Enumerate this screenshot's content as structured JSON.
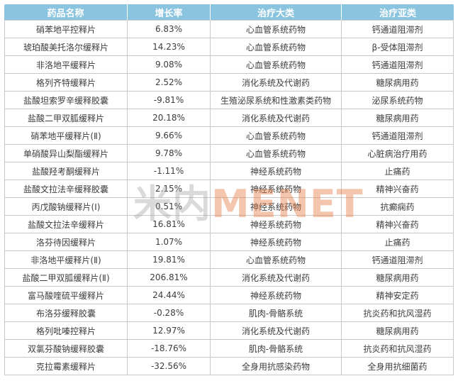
{
  "chart_data": {
    "type": "table",
    "title": "",
    "columns": [
      "药品名称",
      "增长率",
      "治疗大类",
      "治疗亚类"
    ],
    "rows": [
      {
        "name": "硝苯地平控释片",
        "growth": "6.83%",
        "category": "心血管系统药物",
        "subcategory": "钙通道阻滞剂"
      },
      {
        "name": "琥珀酸美托洛尔缓释片",
        "growth": "14.23%",
        "category": "心血管系统药物",
        "subcategory": "β-受体阻滞剂"
      },
      {
        "name": "非洛地平缓释片",
        "growth": "9.08%",
        "category": "心血管系统药物",
        "subcategory": "钙通道阻滞剂"
      },
      {
        "name": "格列齐特缓释片",
        "growth": "2.52%",
        "category": "消化系统及代谢药",
        "subcategory": "糖尿病用药"
      },
      {
        "name": "盐酸坦索罗辛缓释胶囊",
        "growth": "-9.81%",
        "category": "生殖泌尿系统和性激素类药物",
        "subcategory": "泌尿系统药物"
      },
      {
        "name": "盐酸二甲双胍缓释片",
        "growth": "20.18%",
        "category": "消化系统及代谢药",
        "subcategory": "糖尿病用药"
      },
      {
        "name": "硝苯地平缓释片(Ⅱ)",
        "growth": "9.66%",
        "category": "心血管系统药物",
        "subcategory": "钙通道阻滞剂"
      },
      {
        "name": "单硝酸异山梨酯缓释片",
        "growth": "9.78%",
        "category": "心血管系统药物",
        "subcategory": "心脏病治疗用药"
      },
      {
        "name": "盐酸羟考酮缓释片",
        "growth": "-1.11%",
        "category": "神经系统药物",
        "subcategory": "止痛药"
      },
      {
        "name": "盐酸文拉法辛缓释胶囊",
        "growth": "2.15%",
        "category": "神经系统药物",
        "subcategory": "精神兴奋药"
      },
      {
        "name": "丙戊酸钠缓释片(Ⅰ)",
        "growth": "0.51%",
        "category": "神经系统药物",
        "subcategory": "抗癫痫药"
      },
      {
        "name": "盐酸文拉法辛缓释片",
        "growth": "16.81%",
        "category": "神经系统药物",
        "subcategory": "精神兴奋药"
      },
      {
        "name": "洛芬待因缓释片",
        "growth": "1.07%",
        "category": "神经系统药物",
        "subcategory": "止痛药"
      },
      {
        "name": "非洛地平缓释片(Ⅱ)",
        "growth": "19.81%",
        "category": "心血管系统药物",
        "subcategory": "钙通道阻滞剂"
      },
      {
        "name": "盐酸二甲双胍缓释片(Ⅱ)",
        "growth": "206.81%",
        "category": "消化系统及代谢药",
        "subcategory": "糖尿病用药"
      },
      {
        "name": "富马酸喹硫平缓释片",
        "growth": "24.44%",
        "category": "神经系统药物",
        "subcategory": "精神安定药"
      },
      {
        "name": "布洛芬缓释胶囊",
        "growth": "-0.28%",
        "category": "肌肉-骨骼系统",
        "subcategory": "抗炎药和抗风湿药"
      },
      {
        "name": "格列吡嗪控释片",
        "growth": "12.97%",
        "category": "消化系统及代谢药",
        "subcategory": "糖尿病用药"
      },
      {
        "name": "双氯芬酸钠缓释胶囊",
        "growth": "-18.76%",
        "category": "肌肉-骨骼系统",
        "subcategory": "抗炎药和抗风湿药"
      },
      {
        "name": "克拉霉素缓释片",
        "growth": "-32.56%",
        "category": "全身用抗感染药物",
        "subcategory": "全身用抗细菌药"
      }
    ]
  },
  "watermark": {
    "cjk": "米内",
    "latin": "MENET",
    "cjk_color": "#9e9e9e",
    "latin_color": "#e8783e"
  },
  "colors": {
    "header_bg": "#8ac4de",
    "header_text": "#ffffff",
    "border": "#c8c8c8",
    "cell_text": "#3d3d3d"
  }
}
